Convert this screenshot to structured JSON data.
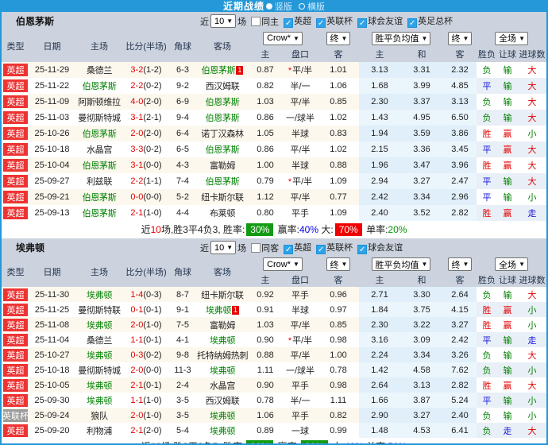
{
  "topbar": {
    "title": "近期战绩",
    "option_vertical": "竖版",
    "option_horizontal": "横版"
  },
  "colors": {
    "accent_blue": "#2498d8",
    "band_gray": "#ccd3de",
    "league_red": "#ee3333",
    "league_gray": "#9b9b9b",
    "win_red": "#e60000",
    "draw_blue": "#1414d8",
    "lose_green": "#008000",
    "score_red": "#dd0000",
    "summary_badge_green": "#149b14",
    "summary_badge_red": "#f00000"
  },
  "columns": {
    "type": "类型",
    "date": "日期",
    "home": "主场",
    "score": "比分(半场)",
    "corner": "角球",
    "away": "客场",
    "dd_company": "Crow*",
    "dd_final1": "终",
    "odds_home": "主",
    "odds_handicap": "盘口",
    "odds_away": "客",
    "dd_avg": "胜平负均值",
    "dd_final2": "终",
    "avg_home": "主",
    "avg_draw": "和",
    "avg_away": "客",
    "dd_scope": "全场",
    "res_wdl": "胜负",
    "res_handicap": "让球",
    "res_goals": "进球数"
  },
  "sections": [
    {
      "team": "伯恩茅斯",
      "filter": {
        "near_label": "近",
        "count": "10",
        "games_label": "场",
        "same_venue_label": "同主",
        "same_venue_checked": false,
        "leagues": [
          {
            "label": "英超",
            "checked": true
          },
          {
            "label": "英联杯",
            "checked": true
          },
          {
            "label": "球会友谊",
            "checked": true
          },
          {
            "label": "英足总杯",
            "checked": true
          }
        ]
      },
      "rows": [
        {
          "type": "英超",
          "type_color": "red",
          "date": "25-11-29",
          "home": "桑德兰",
          "score": "3-2",
          "half": "(1-2)",
          "corner": "6-3",
          "away": "伯恩茅斯",
          "mark_side": "away",
          "rank_mark": "1",
          "odds_home": "0.87",
          "handicap": "平/半",
          "handicap_star": true,
          "odds_away": "1.01",
          "avg_home": "3.13",
          "avg_draw": "3.31",
          "avg_away": "2.32",
          "result": "负",
          "handicap_result": "输",
          "goals_result": "大"
        },
        {
          "type": "英超",
          "type_color": "red",
          "date": "25-11-22",
          "home": "伯恩茅斯",
          "score": "2-2",
          "half": "(0-2)",
          "corner": "9-2",
          "away": "西汉姆联",
          "mark_side": "",
          "rank_mark": "",
          "odds_home": "0.82",
          "handicap": "半/一",
          "handicap_star": false,
          "odds_away": "1.06",
          "avg_home": "1.68",
          "avg_draw": "3.99",
          "avg_away": "4.85",
          "result": "平",
          "handicap_result": "输",
          "goals_result": "大"
        },
        {
          "type": "英超",
          "type_color": "red",
          "date": "25-11-09",
          "home": "阿斯顿维拉",
          "score": "4-0",
          "half": "(2-0)",
          "corner": "6-9",
          "away": "伯恩茅斯",
          "mark_side": "",
          "rank_mark": "",
          "odds_home": "1.03",
          "handicap": "平/半",
          "handicap_star": false,
          "odds_away": "0.85",
          "avg_home": "2.30",
          "avg_draw": "3.37",
          "avg_away": "3.13",
          "result": "负",
          "handicap_result": "输",
          "goals_result": "大"
        },
        {
          "type": "英超",
          "type_color": "red",
          "date": "25-11-03",
          "home": "曼彻斯特城",
          "score": "3-1",
          "half": "(2-1)",
          "corner": "9-4",
          "away": "伯恩茅斯",
          "mark_side": "",
          "rank_mark": "",
          "odds_home": "0.86",
          "handicap": "一/球半",
          "handicap_star": false,
          "odds_away": "1.02",
          "avg_home": "1.43",
          "avg_draw": "4.95",
          "avg_away": "6.50",
          "result": "负",
          "handicap_result": "输",
          "goals_result": "大"
        },
        {
          "type": "英超",
          "type_color": "red",
          "date": "25-10-26",
          "home": "伯恩茅斯",
          "score": "2-0",
          "half": "(2-0)",
          "corner": "6-4",
          "away": "诺丁汉森林",
          "mark_side": "",
          "rank_mark": "",
          "odds_home": "1.05",
          "handicap": "半球",
          "handicap_star": false,
          "odds_away": "0.83",
          "avg_home": "1.94",
          "avg_draw": "3.59",
          "avg_away": "3.86",
          "result": "胜",
          "handicap_result": "赢",
          "goals_result": "小"
        },
        {
          "type": "英超",
          "type_color": "red",
          "date": "25-10-18",
          "home": "水晶宫",
          "score": "3-3",
          "half": "(0-2)",
          "corner": "6-5",
          "away": "伯恩茅斯",
          "mark_side": "",
          "rank_mark": "",
          "odds_home": "0.86",
          "handicap": "平/半",
          "handicap_star": false,
          "odds_away": "1.02",
          "avg_home": "2.15",
          "avg_draw": "3.36",
          "avg_away": "3.45",
          "result": "平",
          "handicap_result": "赢",
          "goals_result": "大"
        },
        {
          "type": "英超",
          "type_color": "red",
          "date": "25-10-04",
          "home": "伯恩茅斯",
          "score": "3-1",
          "half": "(0-0)",
          "corner": "4-3",
          "away": "富勒姆",
          "mark_side": "",
          "rank_mark": "",
          "odds_home": "1.00",
          "handicap": "半球",
          "handicap_star": false,
          "odds_away": "0.88",
          "avg_home": "1.96",
          "avg_draw": "3.47",
          "avg_away": "3.96",
          "result": "胜",
          "handicap_result": "赢",
          "goals_result": "大"
        },
        {
          "type": "英超",
          "type_color": "red",
          "date": "25-09-27",
          "home": "利兹联",
          "score": "2-2",
          "half": "(1-1)",
          "corner": "7-4",
          "away": "伯恩茅斯",
          "mark_side": "",
          "rank_mark": "",
          "odds_home": "0.79",
          "handicap": "平/半",
          "handicap_star": true,
          "odds_away": "1.09",
          "avg_home": "2.94",
          "avg_draw": "3.27",
          "avg_away": "2.47",
          "result": "平",
          "handicap_result": "输",
          "goals_result": "大"
        },
        {
          "type": "英超",
          "type_color": "red",
          "date": "25-09-21",
          "home": "伯恩茅斯",
          "score": "0-0",
          "half": "(0-0)",
          "corner": "5-2",
          "away": "纽卡斯尔联",
          "mark_side": "",
          "rank_mark": "",
          "odds_home": "1.12",
          "handicap": "平/半",
          "handicap_star": false,
          "odds_away": "0.77",
          "avg_home": "2.42",
          "avg_draw": "3.34",
          "avg_away": "2.96",
          "result": "平",
          "handicap_result": "输",
          "goals_result": "小"
        },
        {
          "type": "英超",
          "type_color": "red",
          "date": "25-09-13",
          "home": "伯恩茅斯",
          "score": "2-1",
          "half": "(1-0)",
          "corner": "4-4",
          "away": "布莱顿",
          "mark_side": "",
          "rank_mark": "",
          "odds_home": "0.80",
          "handicap": "平手",
          "handicap_star": false,
          "odds_away": "1.09",
          "avg_home": "2.40",
          "avg_draw": "3.52",
          "avg_away": "2.82",
          "result": "胜",
          "handicap_result": "赢",
          "goals_result": "走"
        }
      ],
      "summary": [
        {
          "t": "近",
          "s": "plain"
        },
        {
          "t": "10",
          "s": "red"
        },
        {
          "t": "场,胜3平4负3, 胜率:",
          "s": "plain"
        },
        {
          "t": "30%",
          "s": "badge-green"
        },
        {
          "t": " 赢率:",
          "s": "plain"
        },
        {
          "t": "40%",
          "s": "blue"
        },
        {
          "t": " 大:",
          "s": "plain"
        },
        {
          "t": "70%",
          "s": "badge-red"
        },
        {
          "t": " 单率:",
          "s": "plain"
        },
        {
          "t": "20%",
          "s": "green"
        }
      ]
    },
    {
      "team": "埃弗顿",
      "filter": {
        "near_label": "近",
        "count": "10",
        "games_label": "场",
        "same_venue_label": "同客",
        "same_venue_checked": false,
        "leagues": [
          {
            "label": "英超",
            "checked": true
          },
          {
            "label": "英联杯",
            "checked": true
          },
          {
            "label": "球会友谊",
            "checked": true
          }
        ]
      },
      "rows": [
        {
          "type": "英超",
          "type_color": "red",
          "date": "25-11-30",
          "home": "埃弗顿",
          "score": "1-4",
          "half": "(0-3)",
          "corner": "8-7",
          "away": "纽卡斯尔联",
          "mark_side": "",
          "rank_mark": "",
          "odds_home": "0.92",
          "handicap": "平手",
          "handicap_star": false,
          "odds_away": "0.96",
          "avg_home": "2.71",
          "avg_draw": "3.30",
          "avg_away": "2.64",
          "result": "负",
          "handicap_result": "输",
          "goals_result": "大"
        },
        {
          "type": "英超",
          "type_color": "red",
          "date": "25-11-25",
          "home": "曼彻斯特联",
          "score": "0-1",
          "half": "(0-1)",
          "corner": "9-1",
          "away": "埃弗顿",
          "mark_side": "away",
          "rank_mark": "1",
          "odds_home": "0.91",
          "handicap": "半球",
          "handicap_star": false,
          "odds_away": "0.97",
          "avg_home": "1.84",
          "avg_draw": "3.75",
          "avg_away": "4.15",
          "result": "胜",
          "handicap_result": "赢",
          "goals_result": "小"
        },
        {
          "type": "英超",
          "type_color": "red",
          "date": "25-11-08",
          "home": "埃弗顿",
          "score": "2-0",
          "half": "(1-0)",
          "corner": "7-5",
          "away": "富勒姆",
          "mark_side": "",
          "rank_mark": "",
          "odds_home": "1.03",
          "handicap": "平/半",
          "handicap_star": false,
          "odds_away": "0.85",
          "avg_home": "2.30",
          "avg_draw": "3.22",
          "avg_away": "3.27",
          "result": "胜",
          "handicap_result": "赢",
          "goals_result": "小"
        },
        {
          "type": "英超",
          "type_color": "red",
          "date": "25-11-04",
          "home": "桑德兰",
          "score": "1-1",
          "half": "(0-1)",
          "corner": "4-1",
          "away": "埃弗顿",
          "mark_side": "",
          "rank_mark": "",
          "odds_home": "0.90",
          "handicap": "平/半",
          "handicap_star": true,
          "odds_away": "0.98",
          "avg_home": "3.16",
          "avg_draw": "3.09",
          "avg_away": "2.42",
          "result": "平",
          "handicap_result": "输",
          "goals_result": "走"
        },
        {
          "type": "英超",
          "type_color": "red",
          "date": "25-10-27",
          "home": "埃弗顿",
          "score": "0-3",
          "half": "(0-2)",
          "corner": "9-8",
          "away": "托特纳姆热刺",
          "mark_side": "",
          "rank_mark": "",
          "odds_home": "0.88",
          "handicap": "平/半",
          "handicap_star": false,
          "odds_away": "1.00",
          "avg_home": "2.24",
          "avg_draw": "3.34",
          "avg_away": "3.26",
          "result": "负",
          "handicap_result": "输",
          "goals_result": "大"
        },
        {
          "type": "英超",
          "type_color": "red",
          "date": "25-10-18",
          "home": "曼彻斯特城",
          "score": "2-0",
          "half": "(0-0)",
          "corner": "11-3",
          "away": "埃弗顿",
          "mark_side": "",
          "rank_mark": "",
          "odds_home": "1.11",
          "handicap": "一/球半",
          "handicap_star": false,
          "odds_away": "0.78",
          "avg_home": "1.42",
          "avg_draw": "4.58",
          "avg_away": "7.62",
          "result": "负",
          "handicap_result": "输",
          "goals_result": "小"
        },
        {
          "type": "英超",
          "type_color": "red",
          "date": "25-10-05",
          "home": "埃弗顿",
          "score": "2-1",
          "half": "(0-1)",
          "corner": "2-4",
          "away": "水晶宫",
          "mark_side": "",
          "rank_mark": "",
          "odds_home": "0.90",
          "handicap": "平手",
          "handicap_star": false,
          "odds_away": "0.98",
          "avg_home": "2.64",
          "avg_draw": "3.13",
          "avg_away": "2.82",
          "result": "胜",
          "handicap_result": "赢",
          "goals_result": "大"
        },
        {
          "type": "英超",
          "type_color": "red",
          "date": "25-09-30",
          "home": "埃弗顿",
          "score": "1-1",
          "half": "(1-0)",
          "corner": "3-5",
          "away": "西汉姆联",
          "mark_side": "",
          "rank_mark": "",
          "odds_home": "0.78",
          "handicap": "半/一",
          "handicap_star": false,
          "odds_away": "1.11",
          "avg_home": "1.66",
          "avg_draw": "3.87",
          "avg_away": "5.24",
          "result": "平",
          "handicap_result": "输",
          "goals_result": "小"
        },
        {
          "type": "英联杯",
          "type_color": "gray",
          "date": "25-09-24",
          "home": "狼队",
          "score": "2-0",
          "half": "(1-0)",
          "corner": "3-5",
          "away": "埃弗顿",
          "mark_side": "",
          "rank_mark": "",
          "odds_home": "1.06",
          "handicap": "平手",
          "handicap_star": false,
          "odds_away": "0.82",
          "avg_home": "2.90",
          "avg_draw": "3.27",
          "avg_away": "2.40",
          "result": "负",
          "handicap_result": "输",
          "goals_result": "小"
        },
        {
          "type": "英超",
          "type_color": "red",
          "date": "25-09-20",
          "home": "利物浦",
          "score": "2-1",
          "half": "(2-0)",
          "corner": "5-4",
          "away": "埃弗顿",
          "mark_side": "",
          "rank_mark": "",
          "odds_home": "0.89",
          "handicap": "一球",
          "handicap_star": false,
          "odds_away": "0.99",
          "avg_home": "1.48",
          "avg_draw": "4.53",
          "avg_away": "6.41",
          "result": "负",
          "handicap_result": "走",
          "goals_result": "大"
        }
      ],
      "summary": [
        {
          "t": "近",
          "s": "plain"
        },
        {
          "t": "10",
          "s": "red"
        },
        {
          "t": "场,胜3平2负5, 胜率:",
          "s": "plain"
        },
        {
          "t": "30%",
          "s": "badge-green"
        },
        {
          "t": " 赢率:",
          "s": "plain"
        },
        {
          "t": "30%",
          "s": "badge-green"
        },
        {
          "t": " 大:",
          "s": "plain"
        },
        {
          "t": "40%",
          "s": "blue"
        },
        {
          "t": " 单率:",
          "s": "plain"
        },
        {
          "t": "50%",
          "s": "blue"
        }
      ]
    }
  ]
}
